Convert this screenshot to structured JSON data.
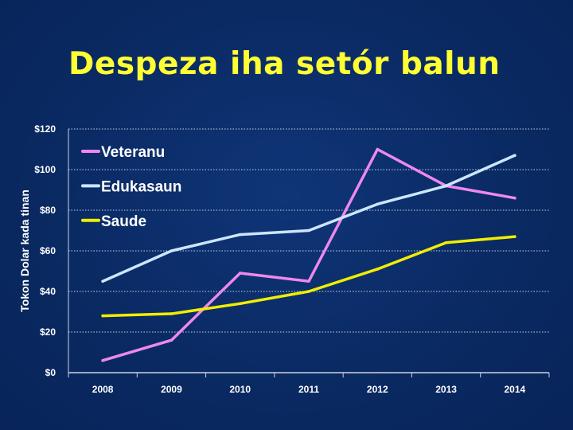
{
  "slide": {
    "title": "Despeza iha setór balun"
  },
  "chart_data": {
    "type": "line",
    "title": "Despeza iha setór balun",
    "ylabel": "Tokon Dolar kada tinan",
    "xlabel": "",
    "categories": [
      "2008",
      "2009",
      "2010",
      "2011",
      "2012",
      "2013",
      "2014"
    ],
    "ylim": [
      0,
      120
    ],
    "yticks": [
      0,
      20,
      40,
      60,
      80,
      100,
      120
    ],
    "ytick_labels": [
      "$0",
      "$20",
      "$40",
      "$60",
      "$80",
      "$100",
      "$120"
    ],
    "grid": "horizontal dotted",
    "legend": "top-left",
    "series": [
      {
        "name": "Veteranu",
        "color": "#ee88ee",
        "values": [
          6,
          16,
          49,
          45,
          110,
          92,
          86
        ]
      },
      {
        "name": "Edukasaun",
        "color": "#cce6ff",
        "values": [
          45,
          60,
          68,
          70,
          83,
          92,
          107
        ]
      },
      {
        "name": "Saude",
        "color": "#f0ee00",
        "values": [
          28,
          29,
          34,
          40,
          51,
          64,
          67
        ]
      }
    ]
  }
}
